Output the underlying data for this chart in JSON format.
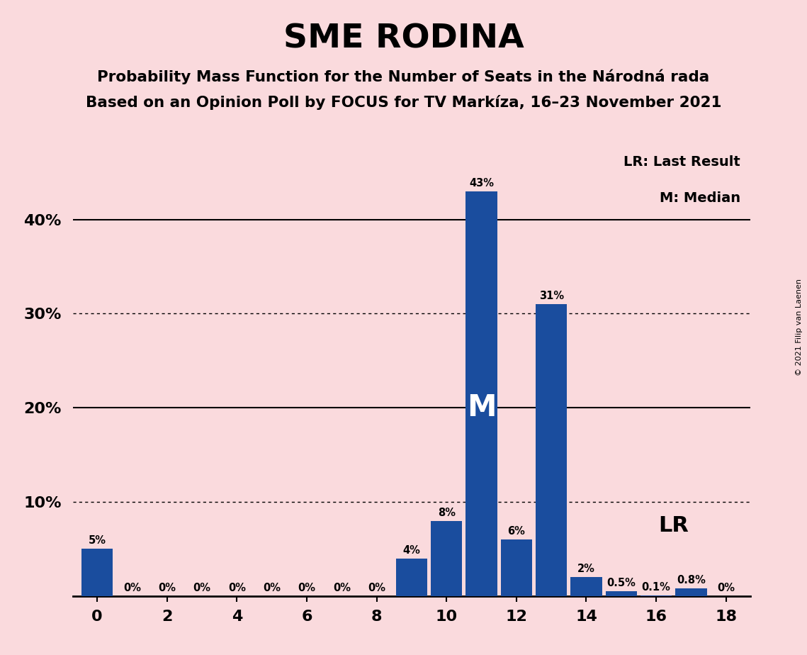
{
  "title": "SME RODINA",
  "subtitle1": "Probability Mass Function for the Number of Seats in the Národná rada",
  "subtitle2": "Based on an Opinion Poll by FOCUS for TV Markíza, 16–23 November 2021",
  "copyright": "© 2021 Filip van Laenen",
  "seats": [
    0,
    1,
    2,
    3,
    4,
    5,
    6,
    7,
    8,
    9,
    10,
    11,
    12,
    13,
    14,
    15,
    16,
    17,
    18
  ],
  "probabilities": [
    0.05,
    0.0,
    0.0,
    0.0,
    0.0,
    0.0,
    0.0,
    0.0,
    0.0,
    0.04,
    0.08,
    0.43,
    0.06,
    0.31,
    0.02,
    0.005,
    0.001,
    0.008,
    0.0
  ],
  "bar_labels": [
    "5%",
    "0%",
    "0%",
    "0%",
    "0%",
    "0%",
    "0%",
    "0%",
    "0%",
    "4%",
    "8%",
    "43%",
    "6%",
    "31%",
    "2%",
    "0.5%",
    "0.1%",
    "0.8%",
    "0%"
  ],
  "bar_color": "#1a4d9e",
  "background_color": "#fadadd",
  "median_seat": 11,
  "lr_seat": 15,
  "yticks": [
    0.0,
    0.1,
    0.2,
    0.3,
    0.4
  ],
  "ytick_labels": [
    "",
    "10%",
    "20%",
    "30%",
    "40%"
  ],
  "ylim": [
    0,
    0.48
  ],
  "xlim": [
    -0.7,
    18.7
  ],
  "xtick_positions": [
    0,
    2,
    4,
    6,
    8,
    10,
    12,
    14,
    16,
    18
  ],
  "legend_lr": "LR: Last Result",
  "legend_m": "M: Median",
  "lr_label": "LR",
  "m_label": "M"
}
